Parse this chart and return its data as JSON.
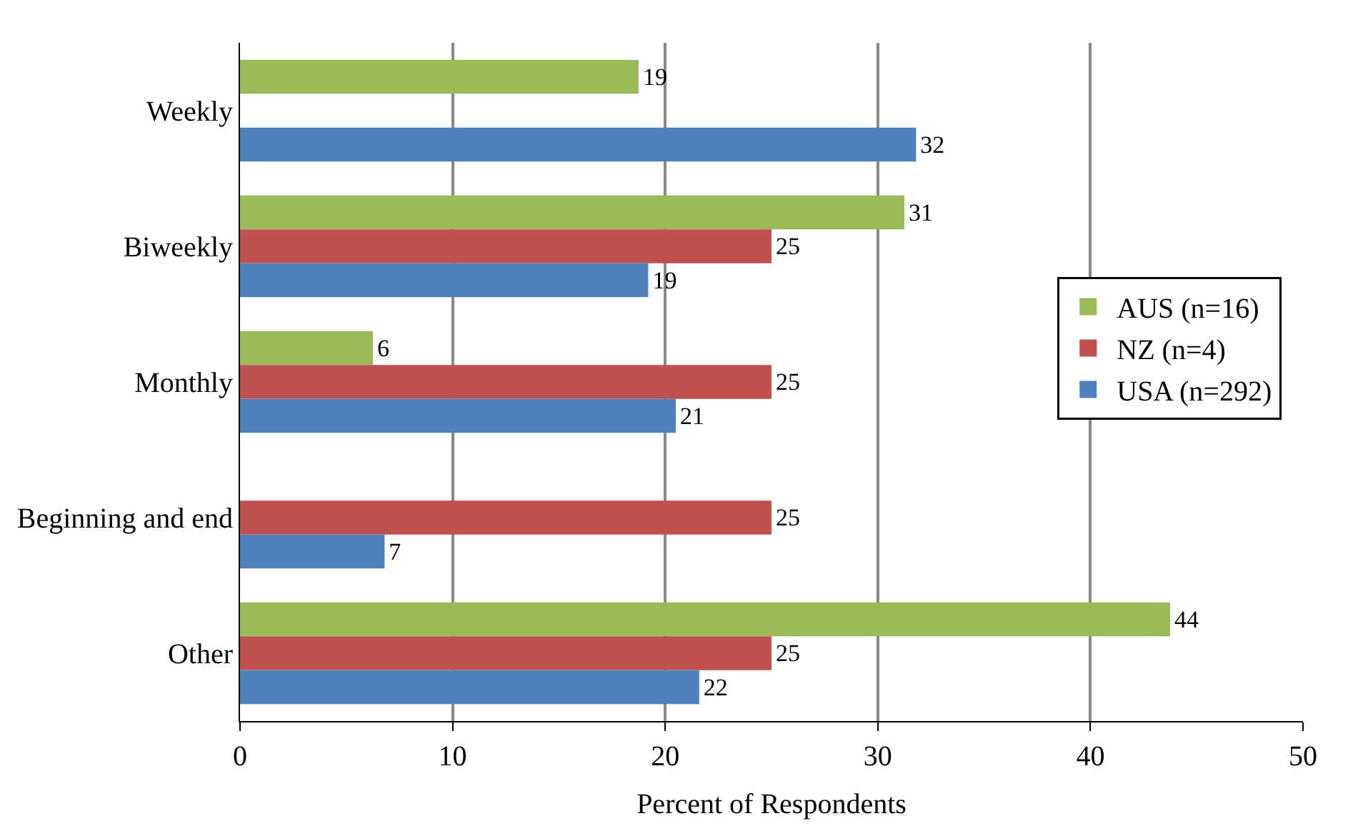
{
  "chart_data": {
    "type": "bar",
    "orientation": "horizontal",
    "xlabel": "Percent of Respondents",
    "categories": [
      "Weekly",
      "Biweekly",
      "Monthly",
      "Beginning and end",
      "Other"
    ],
    "series": [
      {
        "name": "AUS (n=16)",
        "color": "#9bbb59",
        "values": [
          18.75,
          31.25,
          6.25,
          null,
          43.75
        ],
        "value_labels": [
          "19",
          "31",
          "6",
          null,
          "44"
        ]
      },
      {
        "name": "NZ (n=4)",
        "color": "#c0504d",
        "values": [
          null,
          25,
          25,
          25,
          25
        ],
        "value_labels": [
          null,
          "25",
          "25",
          "25",
          "25"
        ]
      },
      {
        "name": "USA (n=292)",
        "color": "#4f81bd",
        "values": [
          31.8,
          19.2,
          20.5,
          6.8,
          21.6
        ],
        "value_labels": [
          "32",
          "19",
          "21",
          "7",
          "22"
        ]
      }
    ],
    "xlim": [
      0,
      50
    ],
    "xticks": [
      0,
      10,
      20,
      30,
      40,
      50
    ],
    "grid": "x",
    "legend": "right"
  }
}
